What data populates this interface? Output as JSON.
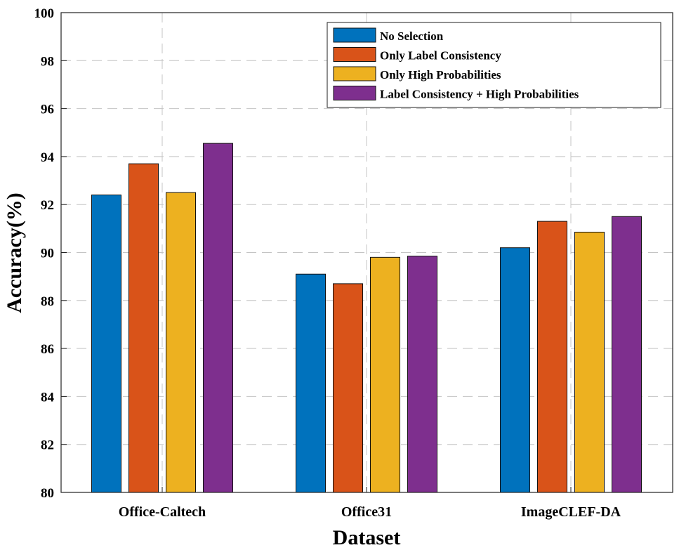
{
  "chart_data": {
    "type": "bar",
    "title": "",
    "xlabel": "Dataset",
    "ylabel": "Accuracy(%)",
    "ylim": [
      80,
      100
    ],
    "yticks": [
      80,
      82,
      84,
      86,
      88,
      90,
      92,
      94,
      96,
      98,
      100
    ],
    "grid": true,
    "legend_position": "top-right",
    "categories": [
      "Office-Caltech",
      "Office31",
      "ImageCLEF-DA"
    ],
    "series": [
      {
        "name": "No Selection",
        "color": "#0072BD",
        "values": [
          92.4,
          89.1,
          90.2
        ]
      },
      {
        "name": "Only Label Consistency",
        "color": "#D95319",
        "values": [
          93.7,
          88.7,
          91.3
        ]
      },
      {
        "name": "Only High Probabilities",
        "color": "#EDB120",
        "values": [
          92.5,
          89.8,
          90.85
        ]
      },
      {
        "name": "Label Consistency + High Probabilities",
        "color": "#7E2F8E",
        "values": [
          94.55,
          89.85,
          91.5
        ]
      }
    ]
  }
}
